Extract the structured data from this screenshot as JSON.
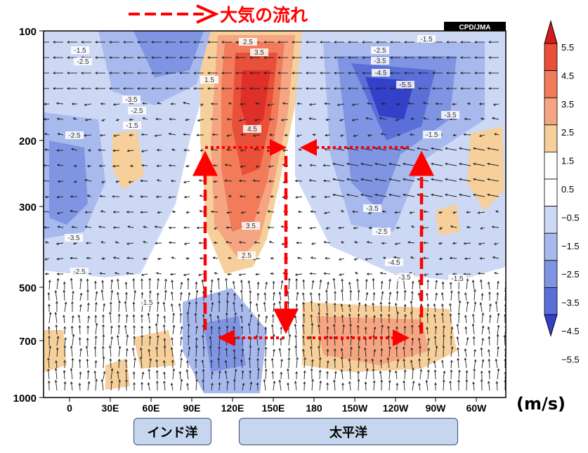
{
  "legend": {
    "flow_label": "大気の流れ",
    "arrow_color": "#ff0000"
  },
  "credit": "CPD/JMA",
  "units": "(m/s)",
  "regions": [
    "インド洋",
    "太平洋"
  ],
  "chart_data": {
    "type": "heatmap",
    "description_vars": "zonal-vertical section, x=longitude, y=pressure (hPa)",
    "y_ticks": [
      "100",
      "200",
      "300",
      "500",
      "700",
      "1000"
    ],
    "x_ticks": [
      "0",
      "30E",
      "60E",
      "90E",
      "120E",
      "150E",
      "180",
      "150W",
      "120W",
      "90W",
      "60W"
    ],
    "colorbar": {
      "labels": [
        "5.5",
        "4.5",
        "3.5",
        "2.5",
        "1.5",
        "0.5",
        "−0.5",
        "−1.5",
        "−2.5",
        "−3.5",
        "−4.5",
        "−5.5"
      ],
      "colors": [
        "#d7191c",
        "#e9503a",
        "#f27b5a",
        "#f5a582",
        "#f6cf9a",
        "#ffffff",
        "#ffffff",
        "#cdd8f5",
        "#a8b9ee",
        "#7f95e3",
        "#5a70d8",
        "#3340c8"
      ]
    },
    "contour_labels": [
      "-1.5",
      "-2.5",
      "-3.5",
      "-2.5",
      "-1.5",
      "-2.5",
      "2.5",
      "3.5",
      "1.5",
      "4.5",
      "3.5",
      "2.5",
      "-2.5",
      "-3.5",
      "-4.5",
      "-5.5",
      "-1.5",
      "-3.5",
      "-2.5",
      "-4.5",
      "-3.5",
      "-3.5",
      "-1.5",
      "-2.5",
      "-1.5",
      "-3.5",
      "-1.5"
    ]
  }
}
